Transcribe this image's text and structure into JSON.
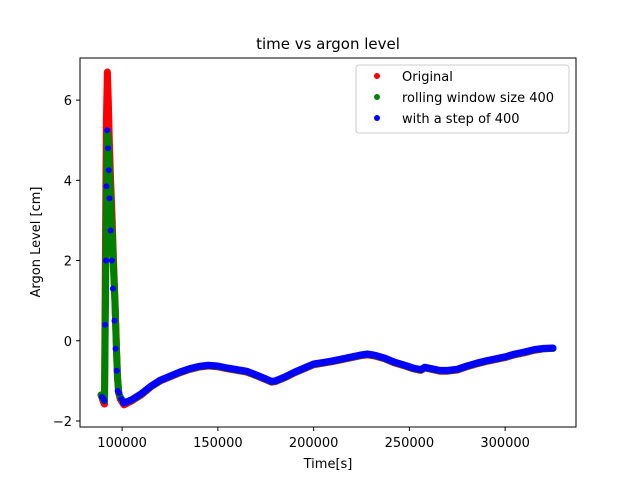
{
  "chart_data": {
    "type": "scatter",
    "title": "time vs argon level",
    "xlabel": "Time[s]",
    "ylabel": "Argon Level [cm]",
    "xlim": [
      78000,
      337000
    ],
    "ylim": [
      -2.15,
      7.05
    ],
    "xticks": [
      100000,
      150000,
      200000,
      250000,
      300000
    ],
    "xtick_labels": [
      "100000",
      "150000",
      "200000",
      "250000",
      "300000"
    ],
    "yticks": [
      -2,
      0,
      2,
      4,
      6
    ],
    "ytick_labels": [
      "−2",
      "0",
      "2",
      "4",
      "6"
    ],
    "grid": false,
    "legend_position": "top-right",
    "series": [
      {
        "name": "Original",
        "color": "#ff0000",
        "curve": [
          [
            89000,
            -1.35
          ],
          [
            90000,
            -1.5
          ],
          [
            90800,
            -1.58
          ],
          [
            91300,
            2.5
          ],
          [
            91800,
            5.5
          ],
          [
            92300,
            6.7
          ],
          [
            92800,
            6.0
          ],
          [
            93300,
            5.0
          ],
          [
            94000,
            4.0
          ],
          [
            94800,
            3.0
          ],
          [
            95500,
            2.0
          ],
          [
            96300,
            1.0
          ],
          [
            97000,
            -0.1
          ],
          [
            97600,
            -0.9
          ],
          [
            98200,
            -1.3
          ],
          [
            99000,
            -1.45
          ],
          [
            101000,
            -1.6
          ],
          [
            105000,
            -1.5
          ],
          [
            110000,
            -1.35
          ],
          [
            115000,
            -1.15
          ],
          [
            120000,
            -1.0
          ],
          [
            125000,
            -0.9
          ],
          [
            130000,
            -0.8
          ],
          [
            135000,
            -0.72
          ],
          [
            140000,
            -0.66
          ],
          [
            145000,
            -0.63
          ],
          [
            150000,
            -0.65
          ],
          [
            155000,
            -0.7
          ],
          [
            160000,
            -0.74
          ],
          [
            165000,
            -0.78
          ],
          [
            170000,
            -0.87
          ],
          [
            175000,
            -0.97
          ],
          [
            178000,
            -1.03
          ],
          [
            180000,
            -1.02
          ],
          [
            185000,
            -0.92
          ],
          [
            190000,
            -0.8
          ],
          [
            195000,
            -0.7
          ],
          [
            200000,
            -0.6
          ],
          [
            205000,
            -0.56
          ],
          [
            210000,
            -0.52
          ],
          [
            215000,
            -0.47
          ],
          [
            220000,
            -0.42
          ],
          [
            225000,
            -0.37
          ],
          [
            228000,
            -0.35
          ],
          [
            232000,
            -0.38
          ],
          [
            237000,
            -0.45
          ],
          [
            242000,
            -0.55
          ],
          [
            247000,
            -0.62
          ],
          [
            252000,
            -0.7
          ],
          [
            256000,
            -0.74
          ],
          [
            258000,
            -0.68
          ],
          [
            262000,
            -0.72
          ],
          [
            266000,
            -0.76
          ],
          [
            270000,
            -0.76
          ],
          [
            275000,
            -0.73
          ],
          [
            280000,
            -0.65
          ],
          [
            285000,
            -0.58
          ],
          [
            290000,
            -0.52
          ],
          [
            295000,
            -0.47
          ],
          [
            300000,
            -0.42
          ],
          [
            305000,
            -0.35
          ],
          [
            310000,
            -0.3
          ],
          [
            315000,
            -0.24
          ],
          [
            320000,
            -0.2
          ],
          [
            325000,
            -0.19
          ]
        ]
      },
      {
        "name": "rolling window size 400",
        "color": "#008000",
        "curve": [
          [
            89000,
            -1.35
          ],
          [
            90000,
            -1.45
          ],
          [
            90800,
            -1.5
          ],
          [
            91300,
            1.0
          ],
          [
            91800,
            3.5
          ],
          [
            92300,
            5.2
          ],
          [
            92800,
            4.9
          ],
          [
            93300,
            4.3
          ],
          [
            94000,
            3.4
          ],
          [
            94800,
            2.6
          ],
          [
            95500,
            1.8
          ],
          [
            96300,
            0.9
          ],
          [
            97000,
            -0.2
          ],
          [
            97600,
            -0.9
          ],
          [
            98200,
            -1.3
          ],
          [
            99000,
            -1.4
          ],
          [
            101000,
            -1.55
          ],
          [
            105000,
            -1.48
          ],
          [
            110000,
            -1.33
          ],
          [
            115000,
            -1.14
          ],
          [
            120000,
            -0.99
          ],
          [
            125000,
            -0.89
          ],
          [
            130000,
            -0.79
          ],
          [
            135000,
            -0.71
          ],
          [
            140000,
            -0.65
          ],
          [
            145000,
            -0.62
          ],
          [
            150000,
            -0.64
          ],
          [
            155000,
            -0.69
          ],
          [
            160000,
            -0.73
          ],
          [
            165000,
            -0.77
          ],
          [
            170000,
            -0.86
          ],
          [
            175000,
            -0.96
          ],
          [
            178000,
            -1.02
          ],
          [
            180000,
            -1.01
          ],
          [
            185000,
            -0.91
          ],
          [
            190000,
            -0.79
          ],
          [
            195000,
            -0.69
          ],
          [
            200000,
            -0.59
          ],
          [
            205000,
            -0.55
          ],
          [
            210000,
            -0.51
          ],
          [
            215000,
            -0.46
          ],
          [
            220000,
            -0.41
          ],
          [
            225000,
            -0.36
          ],
          [
            228000,
            -0.34
          ],
          [
            232000,
            -0.37
          ],
          [
            237000,
            -0.44
          ],
          [
            242000,
            -0.54
          ],
          [
            247000,
            -0.61
          ],
          [
            252000,
            -0.69
          ],
          [
            256000,
            -0.73
          ],
          [
            258000,
            -0.67
          ],
          [
            262000,
            -0.71
          ],
          [
            266000,
            -0.75
          ],
          [
            270000,
            -0.75
          ],
          [
            275000,
            -0.72
          ],
          [
            280000,
            -0.64
          ],
          [
            285000,
            -0.57
          ],
          [
            290000,
            -0.51
          ],
          [
            295000,
            -0.46
          ],
          [
            300000,
            -0.41
          ],
          [
            305000,
            -0.34
          ],
          [
            310000,
            -0.29
          ],
          [
            315000,
            -0.23
          ],
          [
            320000,
            -0.2
          ],
          [
            325000,
            -0.19
          ]
        ]
      },
      {
        "name": "with a step of 400",
        "color": "#0000ff",
        "points": [
          [
            89500,
            -1.4
          ],
          [
            90200,
            -1.45
          ],
          [
            90700,
            -1.5
          ],
          [
            91100,
            0.4
          ],
          [
            91500,
            2.0
          ],
          [
            91800,
            3.85
          ],
          [
            92200,
            5.25
          ],
          [
            92600,
            4.8
          ],
          [
            93000,
            4.25
          ],
          [
            93400,
            3.55
          ],
          [
            94000,
            2.75
          ],
          [
            94600,
            2.0
          ],
          [
            95200,
            1.3
          ],
          [
            96000,
            0.5
          ],
          [
            96600,
            -0.2
          ],
          [
            97200,
            -0.75
          ],
          [
            97700,
            -1.25
          ],
          [
            98400,
            -1.3
          ],
          [
            99500,
            -1.45
          ],
          [
            100500,
            -1.55
          ]
        ],
        "curve": [
          [
            101000,
            -1.55
          ],
          [
            105000,
            -1.47
          ],
          [
            110000,
            -1.32
          ],
          [
            115000,
            -1.13
          ],
          [
            120000,
            -0.98
          ],
          [
            125000,
            -0.88
          ],
          [
            130000,
            -0.78
          ],
          [
            135000,
            -0.7
          ],
          [
            140000,
            -0.64
          ],
          [
            145000,
            -0.61
          ],
          [
            150000,
            -0.63
          ],
          [
            155000,
            -0.68
          ],
          [
            160000,
            -0.72
          ],
          [
            165000,
            -0.76
          ],
          [
            170000,
            -0.85
          ],
          [
            175000,
            -0.95
          ],
          [
            178000,
            -1.01
          ],
          [
            180000,
            -1.0
          ],
          [
            185000,
            -0.9
          ],
          [
            190000,
            -0.78
          ],
          [
            195000,
            -0.68
          ],
          [
            200000,
            -0.58
          ],
          [
            205000,
            -0.54
          ],
          [
            210000,
            -0.5
          ],
          [
            215000,
            -0.45
          ],
          [
            220000,
            -0.4
          ],
          [
            225000,
            -0.35
          ],
          [
            228000,
            -0.33
          ],
          [
            232000,
            -0.36
          ],
          [
            237000,
            -0.43
          ],
          [
            242000,
            -0.53
          ],
          [
            247000,
            -0.6
          ],
          [
            252000,
            -0.68
          ],
          [
            256000,
            -0.72
          ],
          [
            258000,
            -0.66
          ],
          [
            262000,
            -0.7
          ],
          [
            266000,
            -0.74
          ],
          [
            270000,
            -0.74
          ],
          [
            275000,
            -0.71
          ],
          [
            280000,
            -0.63
          ],
          [
            285000,
            -0.56
          ],
          [
            290000,
            -0.5
          ],
          [
            295000,
            -0.45
          ],
          [
            300000,
            -0.4
          ],
          [
            305000,
            -0.33
          ],
          [
            310000,
            -0.28
          ],
          [
            315000,
            -0.22
          ],
          [
            320000,
            -0.19
          ],
          [
            325000,
            -0.18
          ]
        ]
      }
    ]
  }
}
